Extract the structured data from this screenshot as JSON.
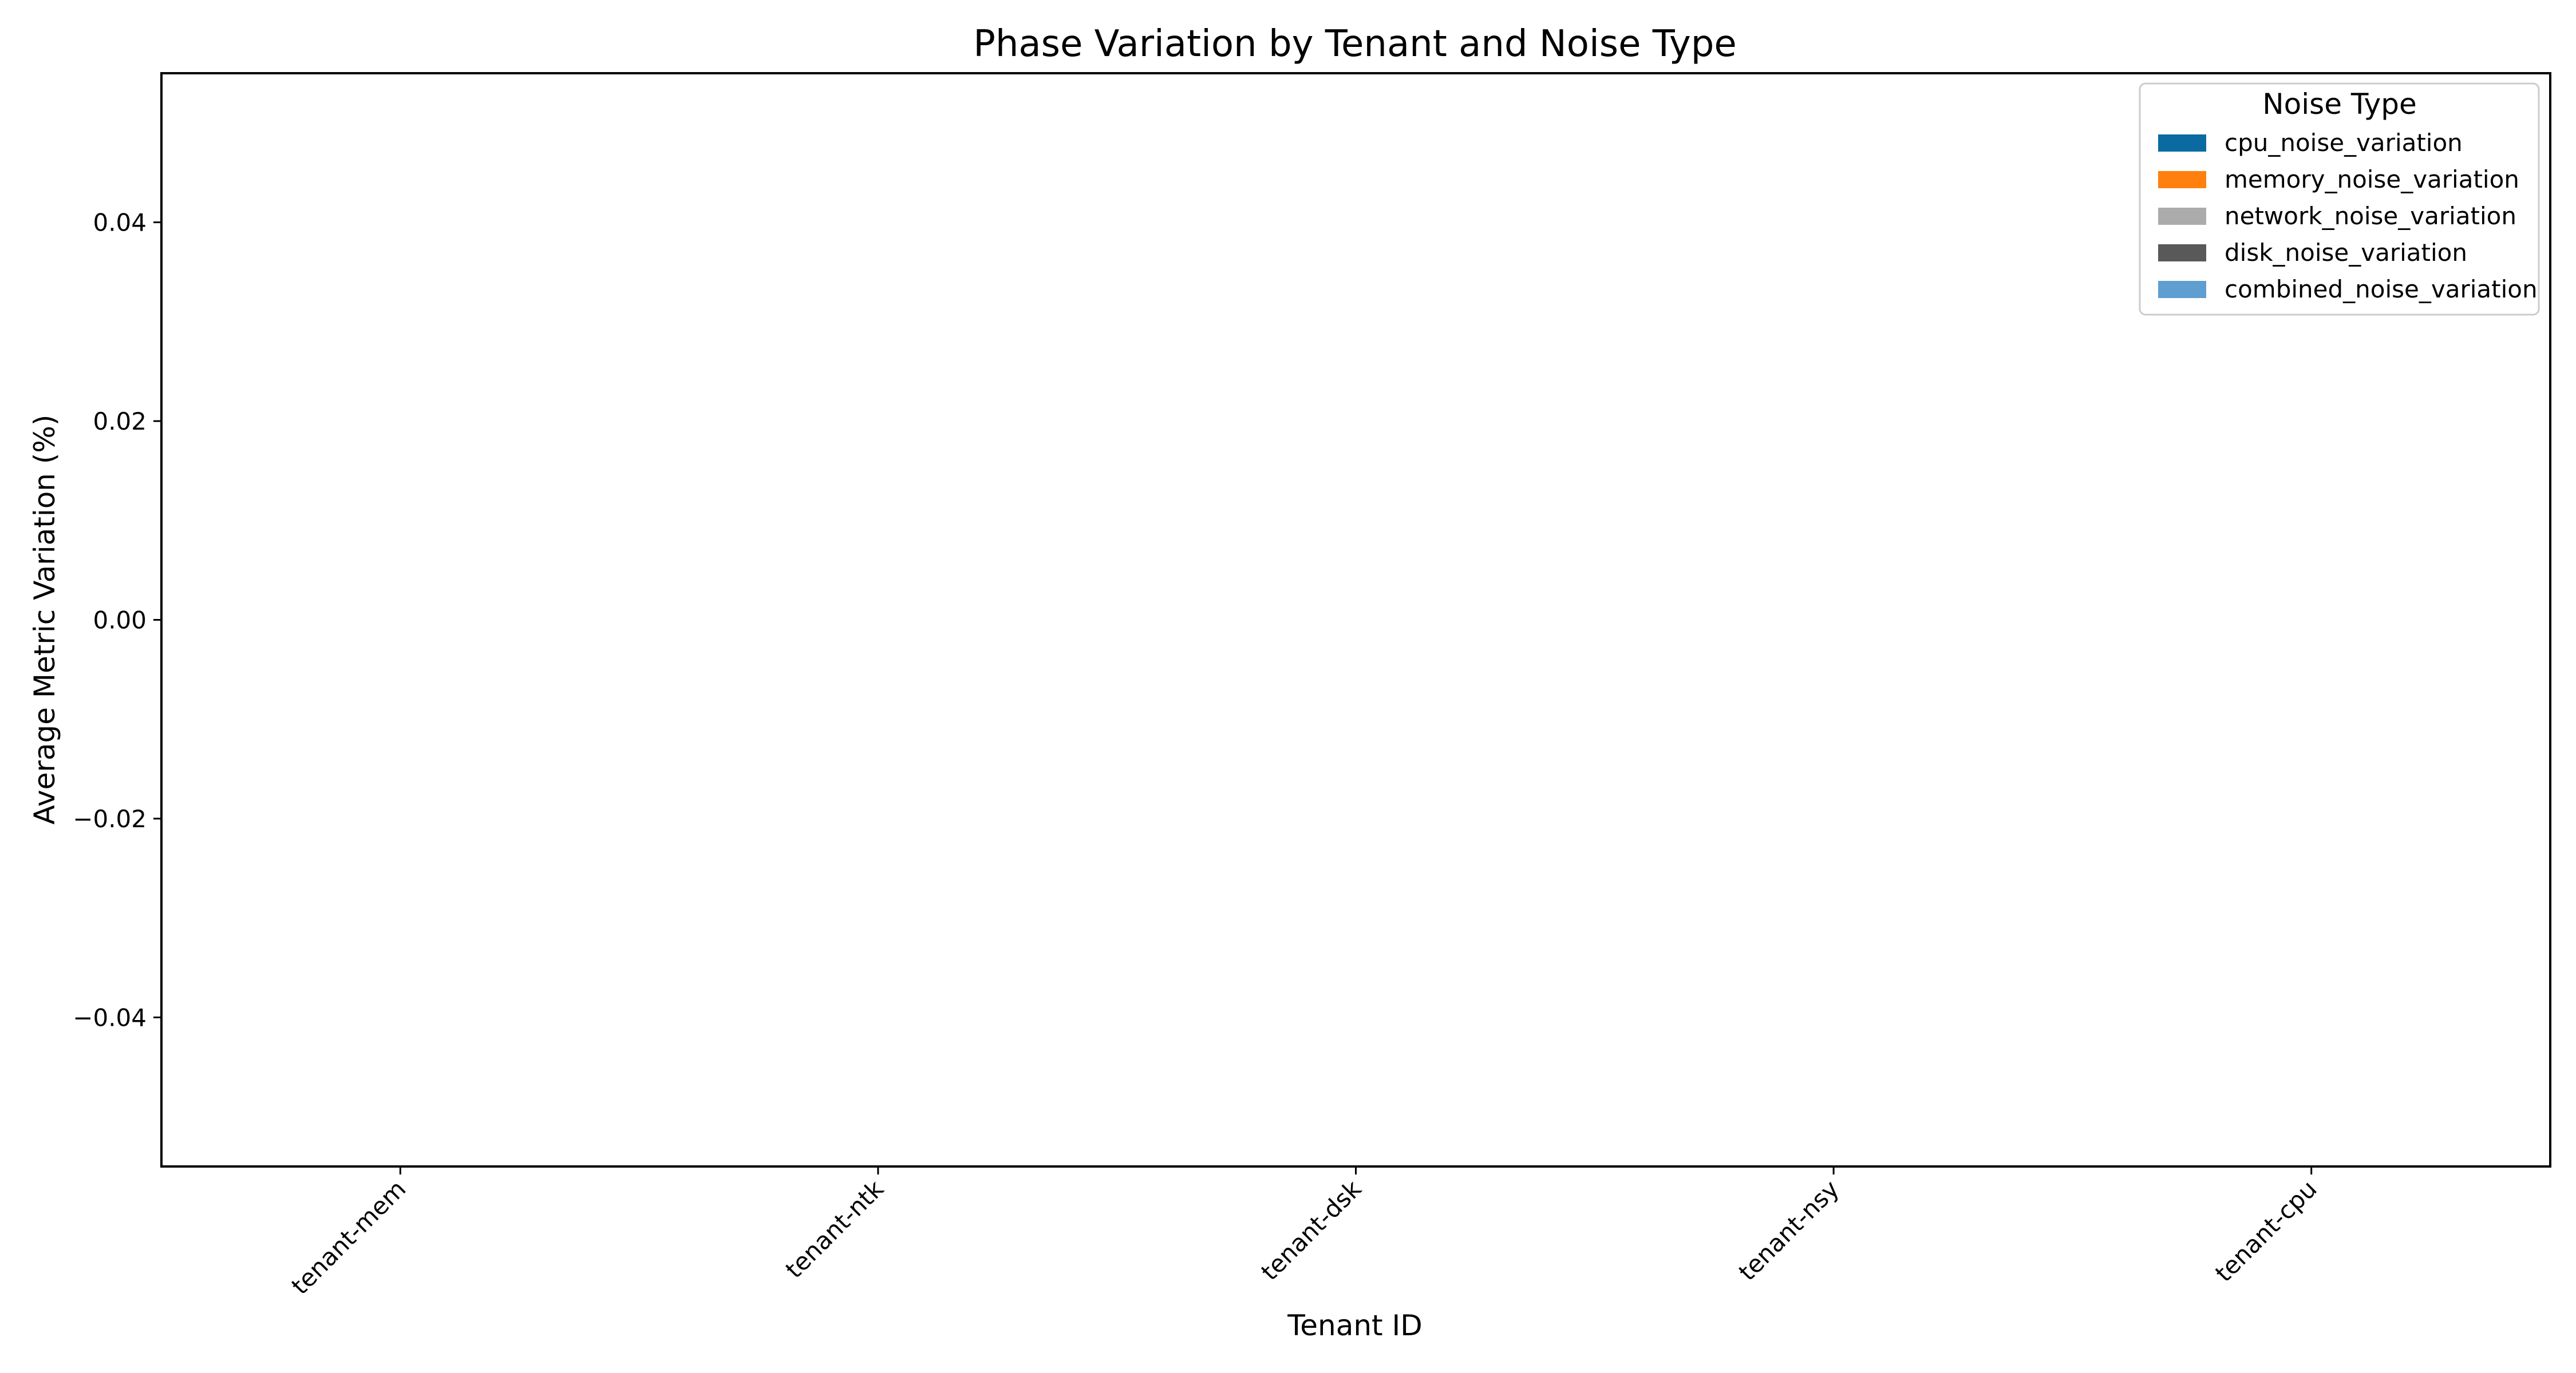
{
  "chart_data": {
    "type": "bar",
    "title": "Phase Variation by Tenant and Noise Type",
    "xlabel": "Tenant ID",
    "ylabel": "Average Metric Variation (%)",
    "categories": [
      "tenant-mem",
      "tenant-ntk",
      "tenant-dsk",
      "tenant-nsy",
      "tenant-cpu"
    ],
    "ylim": [
      -0.055,
      0.055
    ],
    "yticks": [
      -0.04,
      -0.02,
      0.0,
      0.02,
      0.04
    ],
    "ytick_labels": [
      "−0.04",
      "−0.02",
      "0.00",
      "0.02",
      "0.04"
    ],
    "grid": false,
    "legend": {
      "title": "Noise Type",
      "placement": "top-right"
    },
    "series": [
      {
        "name": "cpu_noise_variation",
        "color": "#0a6aa1",
        "values": [
          null,
          null,
          null,
          null,
          null
        ]
      },
      {
        "name": "memory_noise_variation",
        "color": "#ff800e",
        "values": [
          null,
          null,
          null,
          null,
          null
        ]
      },
      {
        "name": "network_noise_variation",
        "color": "#ababab",
        "values": [
          null,
          null,
          null,
          null,
          null
        ]
      },
      {
        "name": "disk_noise_variation",
        "color": "#595959",
        "values": [
          null,
          null,
          null,
          null,
          null
        ]
      },
      {
        "name": "combined_noise_variation",
        "color": "#5f9ed1",
        "values": [
          null,
          null,
          null,
          null,
          null
        ]
      }
    ]
  }
}
